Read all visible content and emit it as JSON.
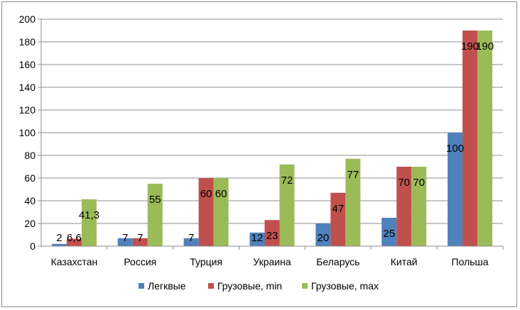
{
  "chart_data": {
    "type": "bar",
    "categories": [
      "Казахстан",
      "Россия",
      "Турция",
      "Украина",
      "Беларусь",
      "Китай",
      "Польша"
    ],
    "series": [
      {
        "name": "Легквые",
        "values": [
          2,
          7,
          7,
          12,
          20,
          25,
          100
        ],
        "labels": [
          "2",
          "7",
          "7",
          "12",
          "20",
          "25",
          "100"
        ],
        "color": "#4f81bd"
      },
      {
        "name": "Грузовые, min",
        "values": [
          6.6,
          7,
          60,
          23,
          47,
          70,
          190
        ],
        "labels": [
          "6,6",
          "7",
          "60",
          "23",
          "47",
          "70",
          "190"
        ],
        "color": "#c0504d"
      },
      {
        "name": "Грузовые, max",
        "values": [
          41.3,
          55,
          60,
          72,
          77,
          70,
          190
        ],
        "labels": [
          "41,3",
          "55",
          "60",
          "72",
          "77",
          "70",
          "190"
        ],
        "color": "#9bbb59"
      }
    ],
    "ylim": [
      0,
      200
    ],
    "yticks": [
      "0",
      "20",
      "40",
      "60",
      "80",
      "100",
      "120",
      "140",
      "160",
      "180",
      "200"
    ],
    "grid": true,
    "legend_position": "bottom"
  }
}
